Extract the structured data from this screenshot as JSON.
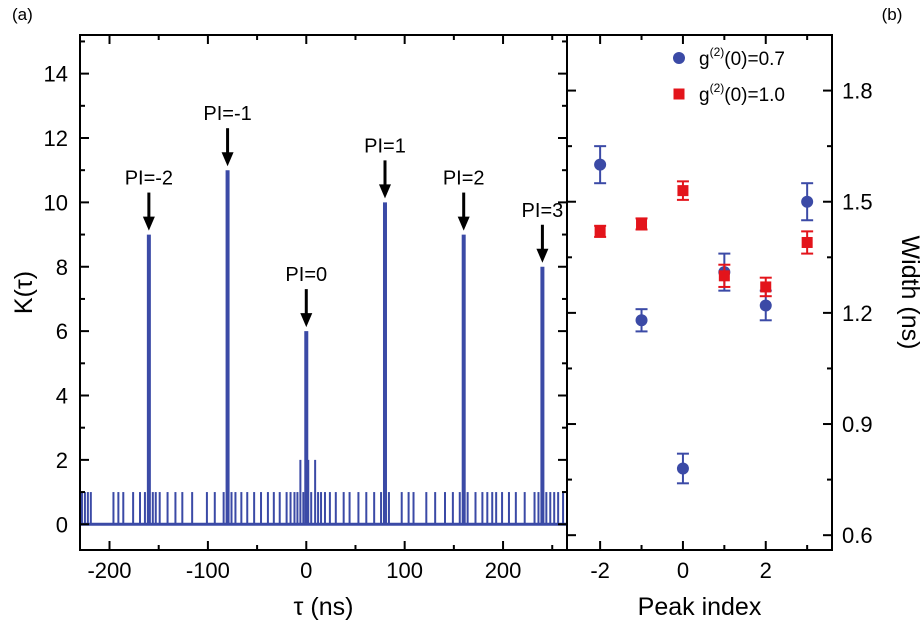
{
  "colors": {
    "blue": "#3b4aa6",
    "red": "#e3141b",
    "axis": "#000000"
  },
  "chart_data": [
    {
      "panel": "(a)",
      "type": "line",
      "xlabel": "τ (ns)",
      "ylabel": "K(τ)",
      "xlim": [
        -230,
        265
      ],
      "ylim": [
        -0.8,
        15.2
      ],
      "xticks": [
        -200,
        -100,
        0,
        100,
        200
      ],
      "xtick_labels": [
        "-200",
        "-100",
        "0",
        "100",
        "200"
      ],
      "yticks": [
        0,
        2,
        4,
        6,
        8,
        10,
        12,
        14
      ],
      "ytick_labels": [
        "0",
        "2",
        "4",
        "6",
        "8",
        "10",
        "12",
        "14"
      ],
      "series": [
        {
          "color": "#3b4aa6",
          "peaks": [
            {
              "x": -160,
              "y": 9
            },
            {
              "x": -80,
              "y": 11
            },
            {
              "x": 0,
              "y": 6
            },
            {
              "x": 80,
              "y": 10
            },
            {
              "x": 160,
              "y": 9
            },
            {
              "x": 240,
              "y": 8
            }
          ],
          "spikes": [
            {
              "x": -6,
              "y": 2
            },
            {
              "x": 2,
              "y": 2
            },
            {
              "x": 9,
              "y": 2
            },
            {
              "x": -228,
              "y": 1
            },
            {
              "x": -225,
              "y": 1
            },
            {
              "x": -222,
              "y": 1
            },
            {
              "x": -219,
              "y": 1
            },
            {
              "x": -196,
              "y": 1
            },
            {
              "x": -191,
              "y": 1
            },
            {
              "x": -186,
              "y": 1
            },
            {
              "x": -176,
              "y": 1
            },
            {
              "x": -169,
              "y": 1
            },
            {
              "x": -164,
              "y": 1
            },
            {
              "x": -156,
              "y": 1
            },
            {
              "x": -153,
              "y": 1
            },
            {
              "x": -149,
              "y": 1
            },
            {
              "x": -141,
              "y": 1
            },
            {
              "x": -133,
              "y": 1
            },
            {
              "x": -126,
              "y": 1
            },
            {
              "x": -116,
              "y": 1
            },
            {
              "x": -101,
              "y": 1
            },
            {
              "x": -93,
              "y": 1
            },
            {
              "x": -84,
              "y": 1
            },
            {
              "x": -76,
              "y": 1
            },
            {
              "x": -72,
              "y": 1
            },
            {
              "x": -66,
              "y": 1
            },
            {
              "x": -60,
              "y": 1
            },
            {
              "x": -53,
              "y": 1
            },
            {
              "x": -46,
              "y": 1
            },
            {
              "x": -39,
              "y": 1
            },
            {
              "x": -33,
              "y": 1
            },
            {
              "x": -27,
              "y": 1
            },
            {
              "x": -20,
              "y": 1
            },
            {
              "x": -16,
              "y": 1
            },
            {
              "x": -12,
              "y": 1
            },
            {
              "x": -9,
              "y": 1
            },
            {
              "x": -3,
              "y": 1
            },
            {
              "x": 5,
              "y": 1
            },
            {
              "x": 12,
              "y": 1
            },
            {
              "x": 15,
              "y": 1
            },
            {
              "x": 19,
              "y": 1
            },
            {
              "x": 24,
              "y": 1
            },
            {
              "x": 30,
              "y": 1
            },
            {
              "x": 38,
              "y": 1
            },
            {
              "x": 44,
              "y": 1
            },
            {
              "x": 53,
              "y": 1
            },
            {
              "x": 61,
              "y": 1
            },
            {
              "x": 69,
              "y": 1
            },
            {
              "x": 76,
              "y": 1
            },
            {
              "x": 84,
              "y": 1
            },
            {
              "x": 97,
              "y": 1
            },
            {
              "x": 104,
              "y": 1
            },
            {
              "x": 109,
              "y": 1
            },
            {
              "x": 122,
              "y": 1
            },
            {
              "x": 131,
              "y": 1
            },
            {
              "x": 141,
              "y": 1
            },
            {
              "x": 149,
              "y": 1
            },
            {
              "x": 156,
              "y": 1
            },
            {
              "x": 164,
              "y": 1
            },
            {
              "x": 172,
              "y": 1
            },
            {
              "x": 179,
              "y": 1
            },
            {
              "x": 184,
              "y": 1
            },
            {
              "x": 189,
              "y": 1
            },
            {
              "x": 193,
              "y": 1
            },
            {
              "x": 199,
              "y": 1
            },
            {
              "x": 206,
              "y": 1
            },
            {
              "x": 213,
              "y": 1
            },
            {
              "x": 222,
              "y": 1
            },
            {
              "x": 232,
              "y": 1
            },
            {
              "x": 236,
              "y": 1
            },
            {
              "x": 244,
              "y": 1
            },
            {
              "x": 248,
              "y": 1
            },
            {
              "x": 252,
              "y": 1
            },
            {
              "x": 256,
              "y": 1
            },
            {
              "x": 261,
              "y": 1
            }
          ]
        }
      ],
      "annotations": [
        {
          "text": "PI=-2",
          "x": -160,
          "y": 9
        },
        {
          "text": "PI=-1",
          "x": -80,
          "y": 11
        },
        {
          "text": "PI=0",
          "x": 0,
          "y": 6
        },
        {
          "text": "PI=1",
          "x": 80,
          "y": 10
        },
        {
          "text": "PI=2",
          "x": 160,
          "y": 9
        },
        {
          "text": "PI=3",
          "x": 240,
          "y": 8
        }
      ]
    },
    {
      "panel": "(b)",
      "type": "scatter",
      "xlabel": "Peak index",
      "ylabel": "Width (ns)",
      "y_axis_side": "right",
      "xlim": [
        -2.8,
        3.6
      ],
      "ylim": [
        0.56,
        1.95
      ],
      "xticks": [
        -2,
        0,
        2
      ],
      "xtick_labels": [
        "-2",
        "0",
        "2"
      ],
      "yticks": [
        0.6,
        0.9,
        1.2,
        1.5,
        1.8
      ],
      "ytick_labels": [
        "0.6",
        "0.9",
        "1.2",
        "1.5",
        "1.8"
      ],
      "legend_position": "top-right",
      "series": [
        {
          "name": "g(2)(0)=0.7",
          "legend_base": "g",
          "legend_sup": "(2)",
          "legend_rest": "(0)=0.7",
          "marker": "circle",
          "color": "#3b4aa6",
          "x": [
            -2,
            -1,
            0,
            1,
            2,
            3
          ],
          "y": [
            1.6,
            1.18,
            0.78,
            1.31,
            1.22,
            1.5
          ],
          "err": [
            0.05,
            0.03,
            0.04,
            0.05,
            0.04,
            0.05
          ]
        },
        {
          "name": "g(2)(0)=1.0",
          "legend_base": "g",
          "legend_sup": "(2)",
          "legend_rest": "(0)=1.0",
          "marker": "square",
          "color": "#e3141b",
          "x": [
            -2,
            -1,
            0,
            1,
            2,
            3
          ],
          "y": [
            1.42,
            1.44,
            1.53,
            1.3,
            1.27,
            1.39
          ],
          "err": [
            0.015,
            0.015,
            0.025,
            0.03,
            0.025,
            0.03
          ]
        }
      ]
    }
  ]
}
